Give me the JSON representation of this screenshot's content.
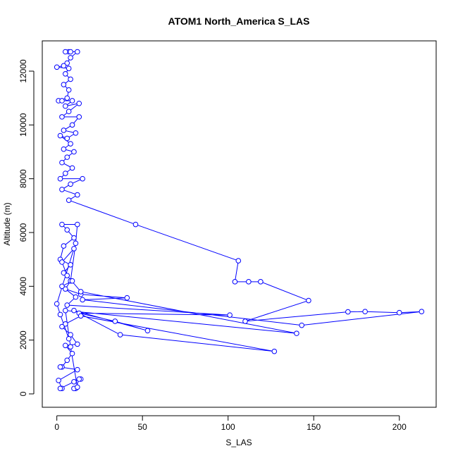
{
  "chart_data": {
    "type": "line",
    "title": "ATOM1 North_America S_LAS",
    "x_label": "S_LAS",
    "y_label": "Altitude (m)",
    "color": "#0000ff",
    "markers": "circle",
    "xlim": [
      -8.5,
      221.5
    ],
    "ylim": [
      -498,
      13126
    ],
    "xticks": [
      0,
      50,
      100,
      150,
      200
    ],
    "yticks": [
      0,
      2000,
      4000,
      6000,
      8000,
      10000,
      12000
    ],
    "x": [
      7,
      5,
      8,
      12,
      8,
      6,
      4,
      0,
      7,
      5,
      8,
      4,
      7,
      6,
      1,
      3,
      9,
      5,
      13,
      7,
      3,
      13,
      9,
      4,
      11,
      6,
      2,
      8,
      4,
      10,
      6,
      3,
      9,
      5,
      2,
      15,
      8,
      3,
      12,
      7,
      46,
      106,
      104,
      112,
      119,
      147,
      110,
      170,
      180,
      200,
      213,
      143,
      15,
      41,
      14,
      5,
      8,
      11,
      12,
      3,
      6,
      10,
      4,
      2,
      8,
      4,
      9,
      3,
      11,
      6,
      101,
      13,
      34,
      53,
      10,
      37,
      127,
      14,
      5,
      3,
      8,
      12,
      5,
      9,
      6,
      3,
      2,
      12,
      1,
      3,
      2,
      10,
      14,
      13,
      11,
      10,
      12,
      8,
      5,
      140,
      14,
      6,
      3,
      10,
      0,
      2,
      7
    ],
    "values": [
      12720,
      12720,
      12720,
      12720,
      12500,
      12300,
      12200,
      12150,
      12100,
      11900,
      11700,
      11500,
      11300,
      11000,
      10900,
      10900,
      10900,
      10700,
      10800,
      10500,
      10300,
      10300,
      10000,
      9800,
      9700,
      9500,
      9600,
      9300,
      9100,
      9000,
      8800,
      8600,
      8400,
      8200,
      8000,
      8000,
      7800,
      7600,
      7400,
      7200,
      6300,
      4950,
      4170,
      4170,
      4170,
      3470,
      2700,
      3050,
      3060,
      3020,
      3060,
      2550,
      3500,
      3570,
      3700,
      3900,
      4200,
      5600,
      6300,
      6300,
      6100,
      5800,
      5500,
      5000,
      4800,
      4500,
      4200,
      4000,
      3600,
      3300,
      2930,
      3000,
      2700,
      2350,
      3100,
      2200,
      1580,
      2900,
      2600,
      2500,
      2200,
      1850,
      1800,
      1500,
      1250,
      1000,
      1000,
      900,
      500,
      200,
      200,
      450,
      550,
      550,
      200,
      200,
      250,
      1750,
      3100,
      2250,
      3800,
      4400,
      4900,
      5400,
      3350,
      2950,
      2050
    ]
  }
}
